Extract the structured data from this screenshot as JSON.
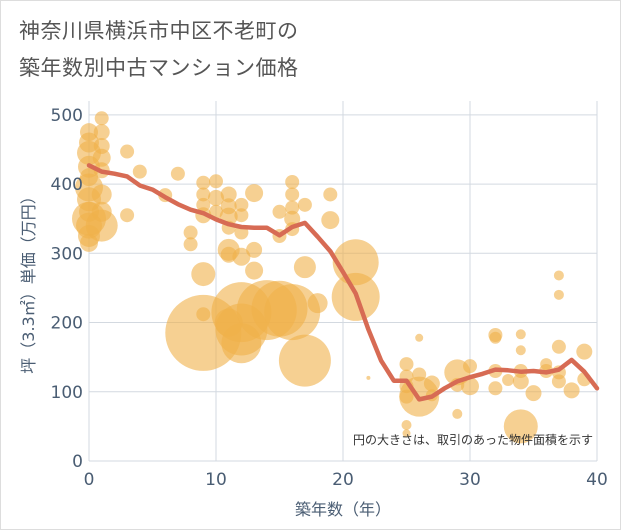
{
  "title": {
    "line1": "神奈川県横浜市中区不老町の",
    "line2": "築年数別中古マンション価格"
  },
  "colors": {
    "bubble": "#f0b14a",
    "line": "#d76b54",
    "grid": "#d3d9e0",
    "axis_text": "#4a5d73"
  },
  "chart_data": {
    "type": "scatter",
    "xlabel": "築年数（年）",
    "ylabel": "坪（3.3㎡）単価（万円）",
    "xlim": [
      0,
      40
    ],
    "ylim": [
      0,
      520
    ],
    "x_ticks": [
      0,
      10,
      20,
      30,
      40
    ],
    "y_ticks": [
      0,
      100,
      200,
      300,
      400,
      500
    ],
    "grid": true,
    "note": "円の大きさは、取引のあった物件面積を示す",
    "bubbles": [
      {
        "x": 0,
        "y": 475,
        "s": 9
      },
      {
        "x": 0,
        "y": 460,
        "s": 10
      },
      {
        "x": 0,
        "y": 445,
        "s": 12
      },
      {
        "x": 0,
        "y": 425,
        "s": 11
      },
      {
        "x": 0,
        "y": 410,
        "s": 9
      },
      {
        "x": 0,
        "y": 395,
        "s": 14
      },
      {
        "x": 0,
        "y": 378,
        "s": 12
      },
      {
        "x": 0,
        "y": 360,
        "s": 10
      },
      {
        "x": 0,
        "y": 350,
        "s": 17
      },
      {
        "x": 0,
        "y": 340,
        "s": 13
      },
      {
        "x": 0,
        "y": 325,
        "s": 11
      },
      {
        "x": 0,
        "y": 315,
        "s": 9
      },
      {
        "x": 1,
        "y": 495,
        "s": 7
      },
      {
        "x": 1,
        "y": 475,
        "s": 8
      },
      {
        "x": 1,
        "y": 455,
        "s": 8
      },
      {
        "x": 1,
        "y": 438,
        "s": 9
      },
      {
        "x": 1,
        "y": 420,
        "s": 8
      },
      {
        "x": 1,
        "y": 385,
        "s": 10
      },
      {
        "x": 1,
        "y": 360,
        "s": 10
      },
      {
        "x": 1,
        "y": 340,
        "s": 16
      },
      {
        "x": 3,
        "y": 447,
        "s": 7
      },
      {
        "x": 3,
        "y": 355,
        "s": 7
      },
      {
        "x": 4,
        "y": 418,
        "s": 7
      },
      {
        "x": 6,
        "y": 384,
        "s": 7
      },
      {
        "x": 7,
        "y": 415,
        "s": 7
      },
      {
        "x": 8,
        "y": 330,
        "s": 7
      },
      {
        "x": 8,
        "y": 313,
        "s": 7
      },
      {
        "x": 9,
        "y": 402,
        "s": 7
      },
      {
        "x": 9,
        "y": 385,
        "s": 7
      },
      {
        "x": 9,
        "y": 370,
        "s": 7
      },
      {
        "x": 9,
        "y": 355,
        "s": 8
      },
      {
        "x": 9,
        "y": 270,
        "s": 12
      },
      {
        "x": 9,
        "y": 212,
        "s": 7
      },
      {
        "x": 9,
        "y": 185,
        "s": 38
      },
      {
        "x": 10,
        "y": 404,
        "s": 7
      },
      {
        "x": 10,
        "y": 380,
        "s": 8
      },
      {
        "x": 10,
        "y": 360,
        "s": 7
      },
      {
        "x": 11,
        "y": 385,
        "s": 8
      },
      {
        "x": 11,
        "y": 368,
        "s": 8
      },
      {
        "x": 11,
        "y": 353,
        "s": 9
      },
      {
        "x": 11,
        "y": 337,
        "s": 7
      },
      {
        "x": 11,
        "y": 305,
        "s": 11
      },
      {
        "x": 11,
        "y": 298,
        "s": 8
      },
      {
        "x": 11,
        "y": 200,
        "s": 14
      },
      {
        "x": 12,
        "y": 370,
        "s": 7
      },
      {
        "x": 12,
        "y": 355,
        "s": 7
      },
      {
        "x": 12,
        "y": 330,
        "s": 7
      },
      {
        "x": 12,
        "y": 295,
        "s": 9
      },
      {
        "x": 12,
        "y": 215,
        "s": 30
      },
      {
        "x": 12,
        "y": 190,
        "s": 26
      },
      {
        "x": 12,
        "y": 170,
        "s": 20
      },
      {
        "x": 13,
        "y": 387,
        "s": 9
      },
      {
        "x": 13,
        "y": 305,
        "s": 8
      },
      {
        "x": 13,
        "y": 275,
        "s": 9
      },
      {
        "x": 14,
        "y": 218,
        "s": 30
      },
      {
        "x": 15,
        "y": 360,
        "s": 7
      },
      {
        "x": 15,
        "y": 325,
        "s": 7
      },
      {
        "x": 15,
        "y": 220,
        "s": 28
      },
      {
        "x": 16,
        "y": 403,
        "s": 7
      },
      {
        "x": 16,
        "y": 385,
        "s": 7
      },
      {
        "x": 16,
        "y": 366,
        "s": 7
      },
      {
        "x": 16,
        "y": 350,
        "s": 8
      },
      {
        "x": 16,
        "y": 335,
        "s": 7
      },
      {
        "x": 16,
        "y": 215,
        "s": 28
      },
      {
        "x": 17,
        "y": 370,
        "s": 7
      },
      {
        "x": 17,
        "y": 280,
        "s": 11
      },
      {
        "x": 17,
        "y": 145,
        "s": 26
      },
      {
        "x": 18,
        "y": 228,
        "s": 10
      },
      {
        "x": 19,
        "y": 385,
        "s": 7
      },
      {
        "x": 19,
        "y": 348,
        "s": 9
      },
      {
        "x": 21,
        "y": 287,
        "s": 23
      },
      {
        "x": 21,
        "y": 237,
        "s": 24
      },
      {
        "x": 22,
        "y": 120,
        "s": 2
      },
      {
        "x": 25,
        "y": 140,
        "s": 7
      },
      {
        "x": 25,
        "y": 122,
        "s": 7
      },
      {
        "x": 25,
        "y": 108,
        "s": 7
      },
      {
        "x": 25,
        "y": 93,
        "s": 7
      },
      {
        "x": 25,
        "y": 52,
        "s": 5
      },
      {
        "x": 25,
        "y": 40,
        "s": 4
      },
      {
        "x": 26,
        "y": 178,
        "s": 4
      },
      {
        "x": 26,
        "y": 125,
        "s": 7
      },
      {
        "x": 26,
        "y": 93,
        "s": 20
      },
      {
        "x": 27,
        "y": 112,
        "s": 8
      },
      {
        "x": 27,
        "y": 95,
        "s": 6
      },
      {
        "x": 29,
        "y": 128,
        "s": 13
      },
      {
        "x": 29,
        "y": 110,
        "s": 7
      },
      {
        "x": 29,
        "y": 68,
        "s": 5
      },
      {
        "x": 30,
        "y": 137,
        "s": 7
      },
      {
        "x": 30,
        "y": 108,
        "s": 9
      },
      {
        "x": 32,
        "y": 182,
        "s": 7
      },
      {
        "x": 32,
        "y": 178,
        "s": 6
      },
      {
        "x": 32,
        "y": 130,
        "s": 7
      },
      {
        "x": 32,
        "y": 105,
        "s": 7
      },
      {
        "x": 33,
        "y": 117,
        "s": 6
      },
      {
        "x": 34,
        "y": 183,
        "s": 5
      },
      {
        "x": 34,
        "y": 160,
        "s": 5
      },
      {
        "x": 34,
        "y": 130,
        "s": 7
      },
      {
        "x": 34,
        "y": 115,
        "s": 8
      },
      {
        "x": 34,
        "y": 50,
        "s": 17
      },
      {
        "x": 35,
        "y": 98,
        "s": 8
      },
      {
        "x": 36,
        "y": 140,
        "s": 6
      },
      {
        "x": 36,
        "y": 130,
        "s": 7
      },
      {
        "x": 37,
        "y": 268,
        "s": 5
      },
      {
        "x": 37,
        "y": 240,
        "s": 5
      },
      {
        "x": 37,
        "y": 165,
        "s": 7
      },
      {
        "x": 37,
        "y": 128,
        "s": 7
      },
      {
        "x": 37,
        "y": 115,
        "s": 7
      },
      {
        "x": 38,
        "y": 102,
        "s": 8
      },
      {
        "x": 39,
        "y": 158,
        "s": 8
      },
      {
        "x": 39,
        "y": 118,
        "s": 7
      }
    ],
    "trend": {
      "x": [
        0,
        1,
        2,
        3,
        4,
        5,
        6,
        7,
        8,
        9,
        10,
        11,
        12,
        13,
        14,
        15,
        16,
        17,
        18,
        19,
        20,
        21,
        22,
        23,
        24,
        25,
        26,
        27,
        28,
        29,
        30,
        31,
        32,
        33,
        34,
        35,
        36,
        37,
        38,
        39,
        40
      ],
      "y": [
        427,
        418,
        415,
        411,
        398,
        392,
        381,
        371,
        363,
        358,
        349,
        342,
        338,
        337,
        337,
        326,
        338,
        344,
        324,
        303,
        273,
        242,
        190,
        145,
        116,
        116,
        89,
        93,
        105,
        115,
        121,
        126,
        132,
        131,
        129,
        130,
        128,
        132,
        146,
        129,
        105
      ]
    }
  }
}
